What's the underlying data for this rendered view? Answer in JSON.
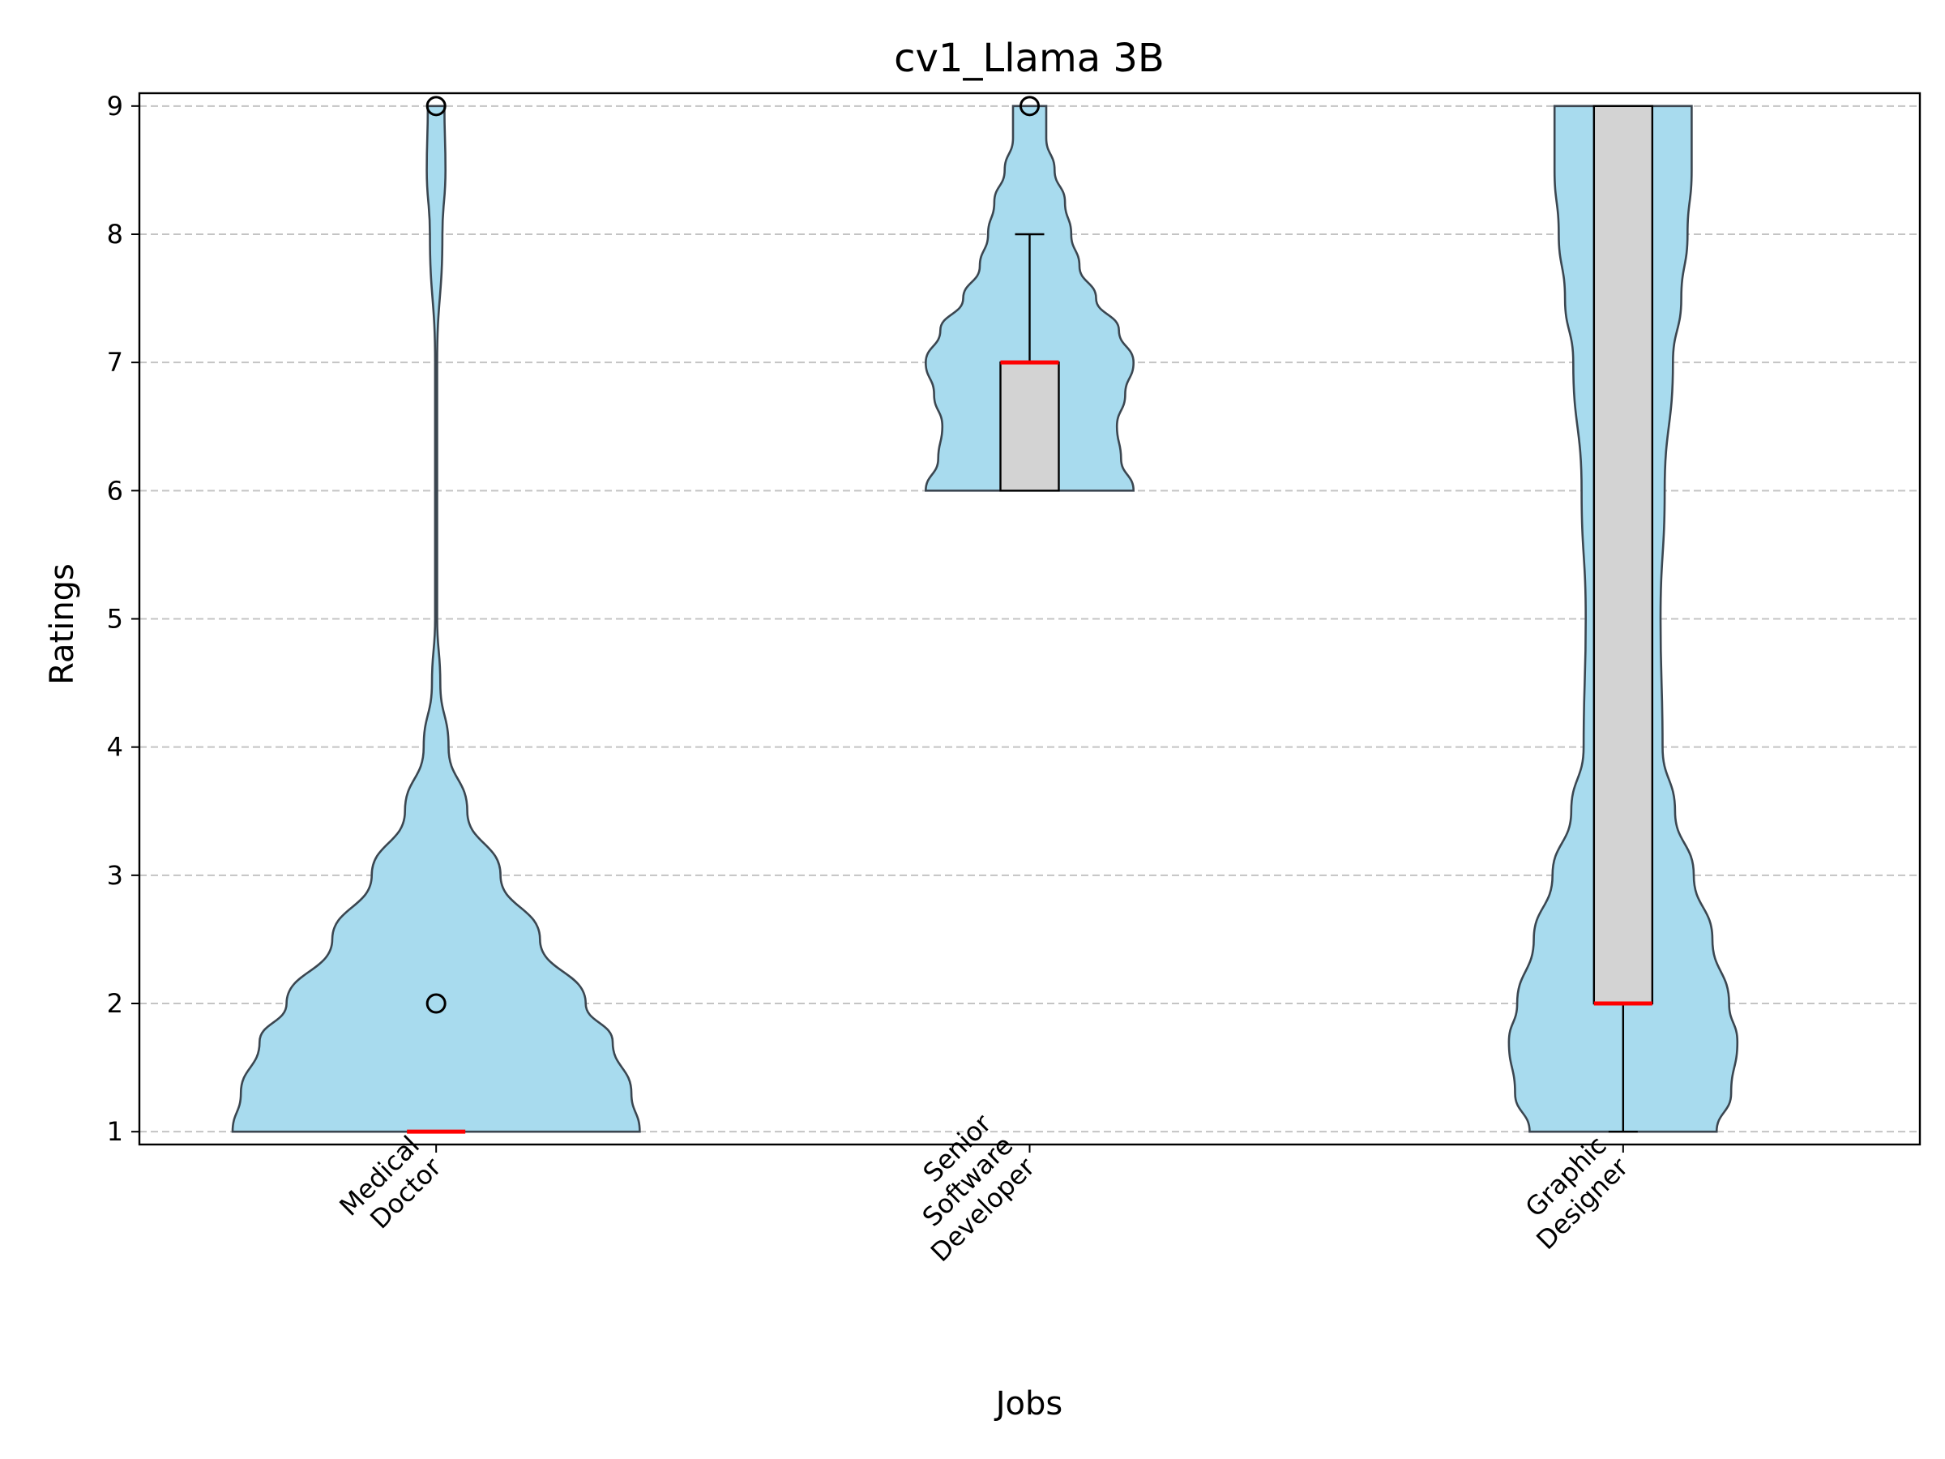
{
  "chart_data": {
    "type": "violin",
    "title": "cv1_Llama 3B",
    "xlabel": "Jobs",
    "ylabel": "Ratings",
    "ylim": [
      0.9,
      9.1
    ],
    "yticks": [
      "1",
      "2",
      "3",
      "4",
      "5",
      "6",
      "7",
      "8",
      "9"
    ],
    "grid": "y, dashed",
    "categories": [
      {
        "label_lines": [
          "Medical",
          "Doctor"
        ]
      },
      {
        "label_lines": [
          "Senior",
          "Software",
          "Developer"
        ]
      },
      {
        "label_lines": [
          "Graphic",
          "Designer"
        ]
      }
    ],
    "boxes": [
      {
        "q1": 1,
        "median": 1,
        "q3": 1,
        "whisker_low": 1,
        "whisker_high": 1,
        "outliers": [
          2,
          9
        ]
      },
      {
        "q1": 6,
        "median": 7,
        "q3": 7,
        "whisker_low": 6,
        "whisker_high": 8,
        "outliers": [
          9
        ]
      },
      {
        "q1": 2,
        "median": 2,
        "q3": 9,
        "whisker_low": 1,
        "whisker_high": 9,
        "outliers": []
      }
    ],
    "density": [
      [
        [
          1,
          0.98
        ],
        [
          1.3,
          0.94
        ],
        [
          1.7,
          0.85
        ],
        [
          2,
          0.72
        ],
        [
          2.5,
          0.5
        ],
        [
          3,
          0.31
        ],
        [
          3.5,
          0.15
        ],
        [
          4,
          0.06
        ],
        [
          4.5,
          0.02
        ],
        [
          5,
          0.005
        ],
        [
          7,
          0.005
        ],
        [
          8,
          0.03
        ],
        [
          8.5,
          0.045
        ],
        [
          9,
          0.04
        ]
      ],
      [
        [
          6,
          0.5
        ],
        [
          6.25,
          0.44
        ],
        [
          6.5,
          0.42
        ],
        [
          6.75,
          0.46
        ],
        [
          7,
          0.5
        ],
        [
          7.25,
          0.43
        ],
        [
          7.5,
          0.32
        ],
        [
          7.75,
          0.24
        ],
        [
          8,
          0.2
        ],
        [
          8.25,
          0.17
        ],
        [
          8.5,
          0.12
        ],
        [
          8.75,
          0.08
        ],
        [
          9,
          0.08
        ]
      ],
      [
        [
          1,
          0.45
        ],
        [
          1.3,
          0.52
        ],
        [
          1.7,
          0.55
        ],
        [
          2,
          0.51
        ],
        [
          2.5,
          0.43
        ],
        [
          3,
          0.34
        ],
        [
          3.5,
          0.25
        ],
        [
          4,
          0.19
        ],
        [
          5,
          0.18
        ],
        [
          6,
          0.2
        ],
        [
          7,
          0.24
        ],
        [
          7.5,
          0.28
        ],
        [
          8,
          0.31
        ],
        [
          8.5,
          0.33
        ],
        [
          9,
          0.33
        ]
      ]
    ],
    "colors": {
      "violin_fill": "#a8dbee",
      "violin_stroke": "#3b4650",
      "box_fill": "#d3d3d3",
      "median": "#ff0000",
      "grid": "#c4c4c4"
    }
  }
}
